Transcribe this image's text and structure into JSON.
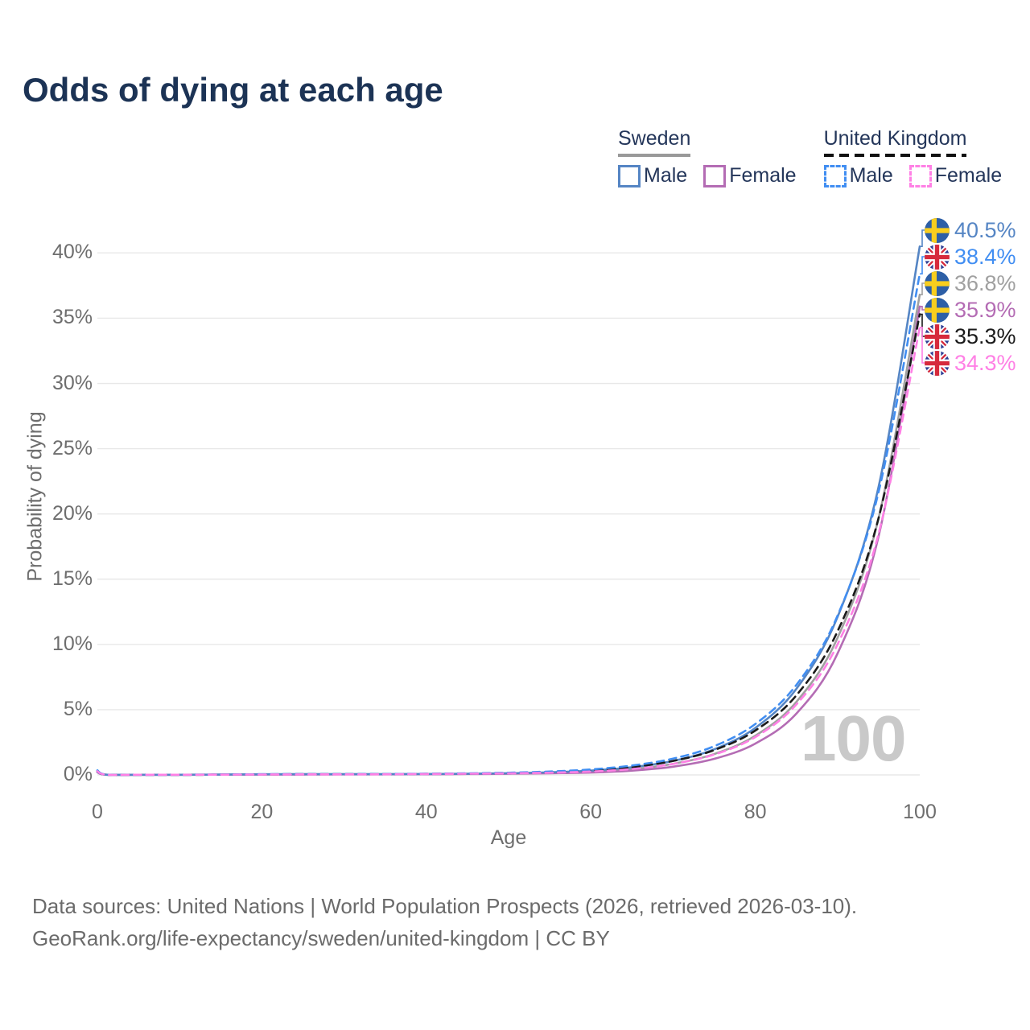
{
  "title": "Odds of dying at each age",
  "legend": {
    "groups": [
      {
        "id": "sweden",
        "label": "Sweden",
        "line_style": "solid",
        "underline_color": "#999999",
        "items": [
          {
            "label": "Male",
            "color": "#5585c4"
          },
          {
            "label": "Female",
            "color": "#b46cb4"
          }
        ]
      },
      {
        "id": "united-kingdom",
        "label": "United Kingdom",
        "line_style": "dashed",
        "underline_color": "#111111",
        "items": [
          {
            "label": "Male",
            "color": "#418ef2"
          },
          {
            "label": "Female",
            "color": "#ff80e5"
          }
        ]
      }
    ]
  },
  "chart_data": {
    "type": "line",
    "title": "Odds of dying at each age",
    "xlabel": "Age",
    "ylabel": "Probability of dying",
    "x_ticks": [
      "0",
      "20",
      "40",
      "60",
      "80",
      "100"
    ],
    "y_ticks": [
      "0%",
      "5%",
      "10%",
      "15%",
      "20%",
      "25%",
      "30%",
      "35%",
      "40%"
    ],
    "xlim": [
      0,
      100
    ],
    "ylim": [
      0,
      42
    ],
    "grid": "horizontal",
    "legend_position": "top-right",
    "watermark": "100",
    "ages": [
      0,
      1,
      5,
      10,
      15,
      20,
      25,
      30,
      35,
      40,
      45,
      50,
      55,
      60,
      65,
      70,
      75,
      80,
      85,
      90,
      95,
      100
    ],
    "series": [
      {
        "id": "sweden-male",
        "name": "Sweden male",
        "flag": "sweden",
        "dash": "solid",
        "color": "#5585c4",
        "end_label": "40.5%",
        "values": [
          0.25,
          0.02,
          0.01,
          0.01,
          0.03,
          0.05,
          0.06,
          0.06,
          0.06,
          0.07,
          0.09,
          0.13,
          0.2,
          0.33,
          0.59,
          1.07,
          1.96,
          3.6,
          6.6,
          12.1,
          22.1,
          40.5
        ]
      },
      {
        "id": "uk-male",
        "name": "United Kingdom male",
        "flag": "uk",
        "dash": "dashed",
        "color": "#418ef2",
        "end_label": "38.4%",
        "values": [
          0.35,
          0.03,
          0.01,
          0.01,
          0.03,
          0.05,
          0.06,
          0.06,
          0.07,
          0.09,
          0.12,
          0.17,
          0.26,
          0.42,
          0.72,
          1.25,
          2.2,
          3.9,
          6.9,
          12.2,
          21.7,
          38.4
        ]
      },
      {
        "id": "sweden-total",
        "name": "Sweden (both sexes)",
        "flag": "sweden",
        "dash": "solid",
        "color": "#a0a0a0",
        "end_label": "36.8%",
        "values": [
          0.22,
          0.02,
          0.01,
          0.01,
          0.02,
          0.04,
          0.05,
          0.05,
          0.05,
          0.06,
          0.08,
          0.11,
          0.16,
          0.26,
          0.45,
          0.85,
          1.6,
          3.0,
          5.6,
          10.5,
          19.7,
          36.8
        ]
      },
      {
        "id": "sweden-female",
        "name": "Sweden female",
        "flag": "sweden",
        "dash": "solid",
        "color": "#b46cb4",
        "end_label": "35.9%",
        "values": [
          0.2,
          0.02,
          0.01,
          0.01,
          0.02,
          0.03,
          0.03,
          0.04,
          0.04,
          0.05,
          0.07,
          0.09,
          0.13,
          0.18,
          0.33,
          0.63,
          1.23,
          2.4,
          4.7,
          9.3,
          18.3,
          35.9
        ]
      },
      {
        "id": "uk-total",
        "name": "United Kingdom (both sexes)",
        "flag": "uk",
        "dash": "dashed",
        "color": "#1a1a1a",
        "end_label": "35.3%",
        "values": [
          0.3,
          0.02,
          0.01,
          0.01,
          0.02,
          0.04,
          0.05,
          0.05,
          0.06,
          0.08,
          0.1,
          0.14,
          0.21,
          0.35,
          0.6,
          1.07,
          1.9,
          3.4,
          6.1,
          11.0,
          19.7,
          35.3
        ]
      },
      {
        "id": "uk-female",
        "name": "United Kingdom female",
        "flag": "uk",
        "dash": "dashed",
        "color": "#ff80e5",
        "end_label": "34.3%",
        "values": [
          0.28,
          0.02,
          0.01,
          0.01,
          0.02,
          0.03,
          0.04,
          0.04,
          0.05,
          0.07,
          0.09,
          0.12,
          0.17,
          0.26,
          0.45,
          0.84,
          1.56,
          2.9,
          5.4,
          10.0,
          18.5,
          34.3
        ]
      }
    ]
  },
  "footer": {
    "line1": "Data sources: United Nations | World Population Prospects (2026, retrieved 2026-03-10).",
    "line2": "GeoRank.org/life-expectancy/sweden/united-kingdom | CC BY"
  }
}
